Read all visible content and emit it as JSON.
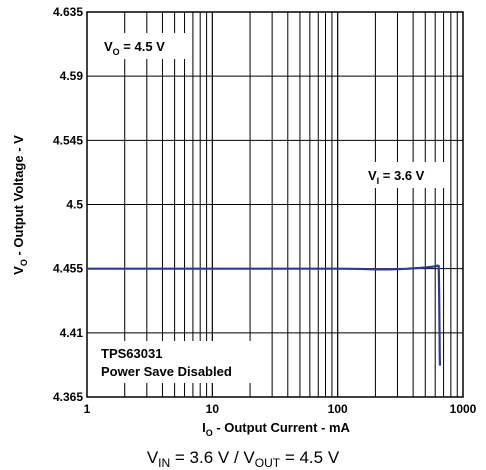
{
  "chart_data": {
    "type": "line",
    "xscale": "log",
    "xlim": [
      1,
      1000
    ],
    "ylim": [
      4.365,
      4.635
    ],
    "grid": true,
    "x_ticks": [
      "1",
      "10",
      "100",
      "1000"
    ],
    "y_ticks": [
      "4.635",
      "4.59",
      "4.545",
      "4.5",
      "4.455",
      "4.41",
      "4.365"
    ],
    "xlabel": {
      "main": "I",
      "sub": "O",
      "rest": " - Output Current - mA"
    },
    "ylabel": {
      "main": "V",
      "sub": "O",
      "rest": " - Output Voltage - V"
    },
    "annotations": {
      "vo": {
        "main": "V",
        "sub": "O",
        "rest": " = 4.5 V"
      },
      "vi": {
        "main": "V",
        "sub": "I",
        "rest": " = 3.6 V"
      },
      "device_line1": "TPS63031",
      "device_line2": "Power Save Disabled"
    },
    "caption": {
      "p1": "V",
      "s1": "IN",
      "p2": " = 3.6 V / V",
      "s2": "OUT",
      "p3": " = 4.5 V"
    },
    "series": [
      {
        "color": "#2e3a8c",
        "x": [
          1,
          2,
          5,
          10,
          20,
          50,
          100,
          150,
          200,
          250,
          300,
          350,
          400,
          450,
          500,
          550,
          600,
          620,
          630,
          640,
          645,
          650,
          652,
          655
        ],
        "y": [
          4.455,
          4.455,
          4.455,
          4.455,
          4.455,
          4.455,
          4.455,
          4.4548,
          4.4545,
          4.4545,
          4.4547,
          4.4549,
          4.4552,
          4.4555,
          4.4558,
          4.4562,
          4.4566,
          4.457,
          4.4572,
          4.4568,
          4.44,
          4.41,
          4.395,
          4.387
        ]
      }
    ]
  }
}
